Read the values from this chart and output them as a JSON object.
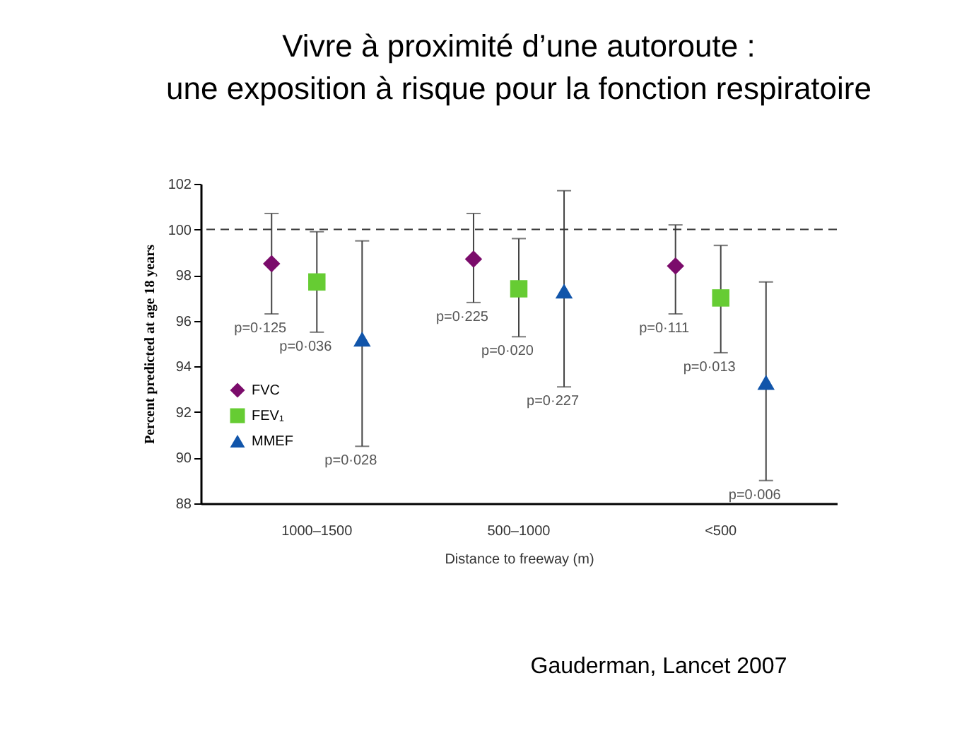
{
  "chart_data": {
    "type": "scatter",
    "title": [
      "Vivre à proximité d’une autoroute :",
      "une exposition à risque pour la fonction respiratoire"
    ],
    "xlabel": "Distance to freeway (m)",
    "ylabel": "Percent predicted at age 18 years",
    "categories": [
      "1000–1500",
      "500–1000",
      "<500"
    ],
    "series": [
      {
        "name": "FVC",
        "color": "#7b0c6b",
        "marker": "diamond",
        "values": [
          98.5,
          98.7,
          98.4
        ],
        "errors": [
          [
            96.3,
            100.7
          ],
          [
            96.8,
            100.7
          ],
          [
            96.3,
            100.2
          ]
        ]
      },
      {
        "name": "FEV₁",
        "color": "#66cc33",
        "marker": "square",
        "values": [
          97.7,
          97.4,
          97.0
        ],
        "errors": [
          [
            95.5,
            99.9
          ],
          [
            95.3,
            99.6
          ],
          [
            94.6,
            99.3
          ]
        ]
      },
      {
        "name": "MMEF",
        "color": "#1155aa",
        "marker": "triangle",
        "values": [
          95.2,
          97.3,
          93.3
        ],
        "errors": [
          [
            90.5,
            99.5
          ],
          [
            93.1,
            101.7
          ],
          [
            89.0,
            97.7
          ]
        ]
      }
    ],
    "ylim": [
      88,
      102
    ],
    "yticks": [
      88,
      90,
      92,
      94,
      96,
      98,
      100,
      102
    ],
    "grid": false,
    "legend": "left",
    "ref_lines": [
      {
        "axis": "y",
        "value": 100,
        "line_style": "dashed",
        "color": "#333333"
      }
    ],
    "annotations": [
      "p=0·125",
      "p=0·036",
      "p=0·028",
      "p=0·225",
      "p=0·020",
      "p=0·227",
      "p=0·111",
      "p=0·013",
      "p=0·006",
      "Gauderman, Lancet 2007"
    ]
  }
}
